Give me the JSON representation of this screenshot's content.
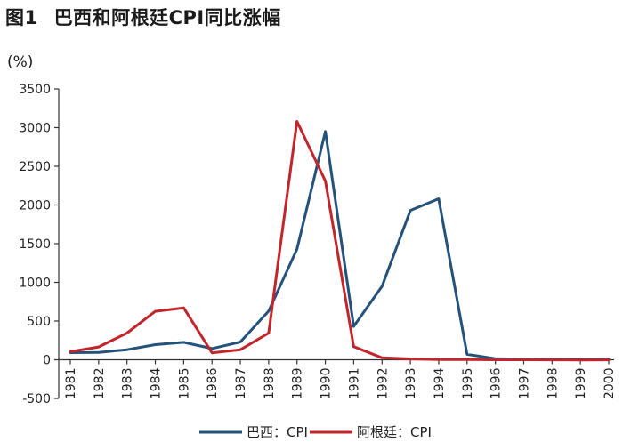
{
  "figure": {
    "number": "图1",
    "title": "巴西和阿根廷CPI同比涨幅",
    "unit": "(%)"
  },
  "colors": {
    "brazil": "#24527a",
    "argentina": "#c0262c",
    "axis": "#333333"
  },
  "chart_data": {
    "type": "line",
    "title": "巴西和阿根廷CPI同比涨幅",
    "ylabel": "(%)",
    "xlabel": "",
    "ylim": [
      -500,
      3500
    ],
    "yticks": [
      -500,
      0,
      500,
      1000,
      1500,
      2000,
      2500,
      3000,
      3500
    ],
    "ytick_labels": [
      "-500",
      "0",
      "500",
      "1000",
      "1500",
      "2000",
      "2500",
      "3000",
      "3500"
    ],
    "categories": [
      "1981",
      "1982",
      "1983",
      "1984",
      "1985",
      "1986",
      "1987",
      "1988",
      "1989",
      "1990",
      "1991",
      "1992",
      "1993",
      "1994",
      "1995",
      "1996",
      "1997",
      "1998",
      "1999",
      "2000"
    ],
    "grid": false,
    "legend_position": "bottom",
    "series": [
      {
        "name": "巴西：CPI",
        "color": "#24527a",
        "values": [
          92,
          95,
          130,
          195,
          225,
          145,
          230,
          630,
          1430,
          2950,
          430,
          950,
          1930,
          2080,
          70,
          15,
          7,
          3,
          5,
          7
        ]
      },
      {
        "name": "阿根廷：CPI",
        "color": "#c0262c",
        "values": [
          105,
          165,
          345,
          625,
          670,
          90,
          130,
          345,
          3080,
          2310,
          170,
          25,
          12,
          4,
          3,
          0,
          0,
          -1,
          -2,
          -1
        ]
      }
    ]
  }
}
